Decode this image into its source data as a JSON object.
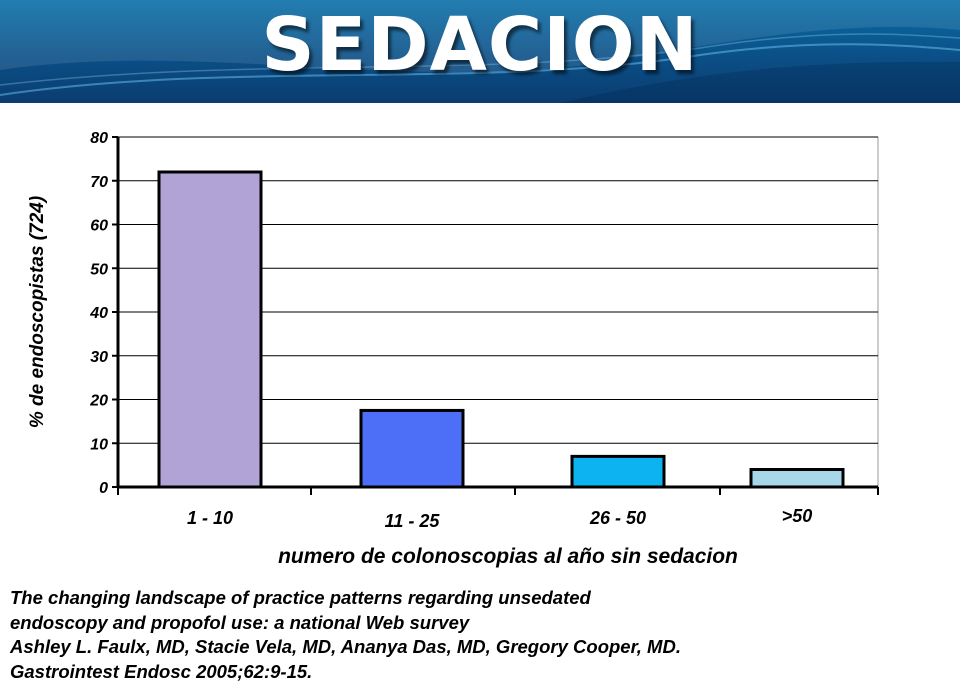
{
  "slide": {
    "title": "SEDACION",
    "colors": {
      "banner_top": "#0a6fa8",
      "banner_bottom": "#0a3d70"
    }
  },
  "chart_data": {
    "type": "bar",
    "title": "",
    "ylabel": "% de endoscopistas (724)",
    "xlabel": "numero de colonoscopias al año sin sedacion",
    "categories": [
      "1 - 10",
      "11 - 25",
      "26 - 50",
      ">50"
    ],
    "values": [
      72,
      17.5,
      7,
      4
    ],
    "colors": [
      "#b1a3d6",
      "#4d6ef6",
      "#0db3f0",
      "#a8d7ea"
    ],
    "ylim": [
      0,
      80
    ],
    "yticks": [
      0,
      10,
      20,
      30,
      40,
      50,
      60,
      70,
      80
    ],
    "ytick_labels": [
      "0",
      "10",
      "20",
      "30",
      "40",
      "50",
      "60",
      "70",
      "80"
    ],
    "grid": true,
    "legend": "none"
  },
  "citation": {
    "lines": [
      "The changing landscape of practice patterns regarding unsedated",
      "endoscopy and propofol use: a national Web survey",
      "Ashley L. Faulx, MD, Stacie Vela, MD, Ananya Das, MD, Gregory Cooper, MD.",
      "Gastrointest Endosc 2005;62:9-15."
    ]
  }
}
